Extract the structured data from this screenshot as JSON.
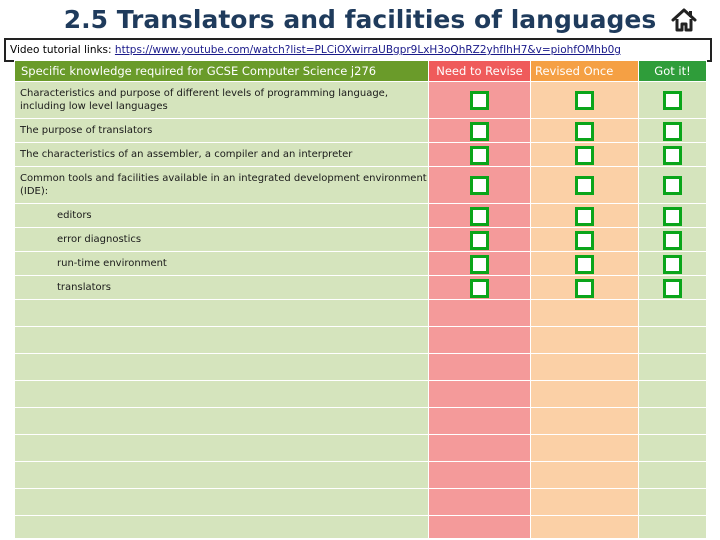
{
  "title": "2.5 Translators and facilities of languages",
  "icons": {
    "home": "home-icon",
    "checkbox": "checkbox-icon"
  },
  "link_bar": {
    "label": "Video tutorial links:",
    "url": "https://www.youtube.com/watch?list=PLCiOXwirraUBgpr9LxH3oQhRZ2yhfIhH7&v=piohfOMhb0g"
  },
  "table": {
    "headers": {
      "spec": "Specific knowledge required for GCSE Computer Science j276",
      "need": "Need to Revise",
      "revised": "Revised Once",
      "got": "Got it!"
    },
    "rows": [
      {
        "text": "Characteristics and purpose of different levels of programming language, including low level languages"
      },
      {
        "text": "The purpose of translators"
      },
      {
        "text": "The characteristics of an assembler, a compiler and an interpreter"
      },
      {
        "text": "Common tools and facilities available in an integrated development environment (IDE):"
      },
      {
        "text": "editors"
      },
      {
        "text": "error diagnostics"
      },
      {
        "text": "run-time environment"
      },
      {
        "text": "translators"
      }
    ]
  },
  "colors": {
    "spec_header": "#6a9b2a",
    "need_header": "#ef5b5b",
    "revised_header": "#f5a044",
    "got_header": "#2f9d3a",
    "checkbox": "#0aa51a"
  }
}
